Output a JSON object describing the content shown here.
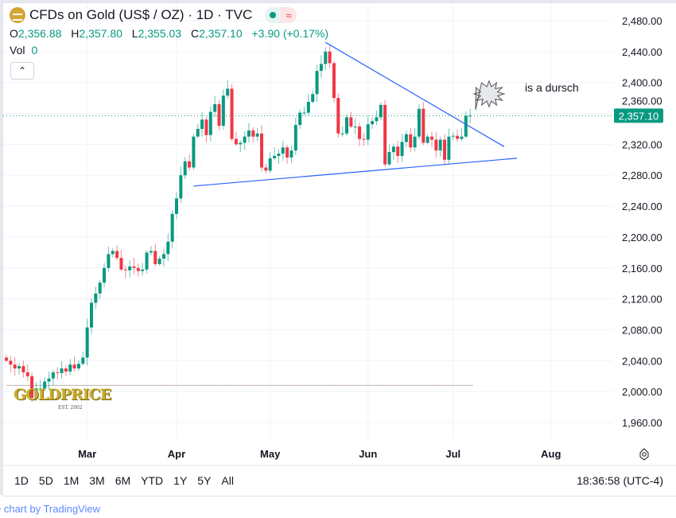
{
  "header": {
    "title": "CFDs on Gold (US$ / OZ) · 1D · TVC",
    "status_dot_color": "#089981",
    "status_wave": "≈"
  },
  "ohlc": {
    "o_label": "O",
    "o": "2,356.88",
    "h_label": "H",
    "h": "2,357.80",
    "l_label": "L",
    "l": "2,355.03",
    "c_label": "C",
    "c": "2,357.10",
    "change": "+3.90 (+0.17%)"
  },
  "volume": {
    "label": "Vol",
    "value": "0"
  },
  "collapse_icon": "chevron-up-icon",
  "annotation": {
    "text": "is a dursch"
  },
  "watermark": {
    "text": "GOLDPRICE",
    "sub": "EST. 2002"
  },
  "ranges": [
    "1D",
    "5D",
    "1M",
    "3M",
    "6M",
    "YTD",
    "1Y",
    "5Y",
    "All"
  ],
  "clock": "18:36:58 (UTC-4)",
  "credit": "e chart by TradingView",
  "settings_icon": "gear-icon",
  "chart_data": {
    "type": "candlestick",
    "colors": {
      "up": "#089981",
      "down": "#f23645",
      "trendline": "#2962ff"
    },
    "y_ticks": [
      "2,480.00",
      "2,440.00",
      "2,400.00",
      "2,360.00",
      "2,320.00",
      "2,280.00",
      "2,240.00",
      "2,200.00",
      "2,160.00",
      "2,120.00",
      "2,080.00",
      "2,040.00",
      "2,000.00",
      "1,960.00"
    ],
    "ylim": [
      1940,
      2490
    ],
    "x_ticks": [
      {
        "label": "Mar",
        "date": "2024-03-01"
      },
      {
        "label": "Apr",
        "date": "2024-04-01"
      },
      {
        "label": "May",
        "date": "2024-05-01"
      },
      {
        "label": "Jun",
        "date": "2024-06-03"
      },
      {
        "label": "Jul",
        "date": "2024-07-01"
      },
      {
        "label": "Aug",
        "date": "2024-08-01"
      }
    ],
    "last_price": {
      "value": 2357.1,
      "label": "2,357.10"
    },
    "reference_line": 2008,
    "closes": [
      2040,
      2035,
      2030,
      2033,
      2025,
      2020,
      1992,
      2004,
      2004,
      2013,
      2017,
      2025,
      2024,
      2030,
      2026,
      2035,
      2030,
      2036,
      2044,
      2083,
      2115,
      2127,
      2141,
      2160,
      2178,
      2182,
      2173,
      2158,
      2157,
      2162,
      2160,
      2156,
      2158,
      2180,
      2182,
      2165,
      2172,
      2178,
      2194,
      2230,
      2250,
      2280,
      2298,
      2290,
      2330,
      2340,
      2352,
      2332,
      2362,
      2372,
      2344,
      2383,
      2392,
      2327,
      2320,
      2322,
      2330,
      2338,
      2330,
      2334,
      2290,
      2286,
      2302,
      2305,
      2308,
      2316,
      2303,
      2312,
      2345,
      2361,
      2361,
      2375,
      2385,
      2415,
      2424,
      2440,
      2425,
      2380,
      2334,
      2334,
      2355,
      2343,
      2343,
      2327,
      2326,
      2346,
      2350,
      2355,
      2371,
      2294,
      2310,
      2317,
      2305,
      2323,
      2333,
      2316,
      2330,
      2366,
      2322,
      2330,
      2326,
      2312,
      2326,
      2300,
      2330,
      2331,
      2327,
      2330,
      2356.88,
      2357.1
    ],
    "trendlines": [
      {
        "from": {
          "date": "2024-05-20",
          "price": 2452
        },
        "to": {
          "date": "2024-07-17",
          "price": 2317
        }
      },
      {
        "from": {
          "date": "2024-04-05",
          "price": 2266
        },
        "to": {
          "date": "2024-07-22",
          "price": 2302
        }
      }
    ]
  }
}
